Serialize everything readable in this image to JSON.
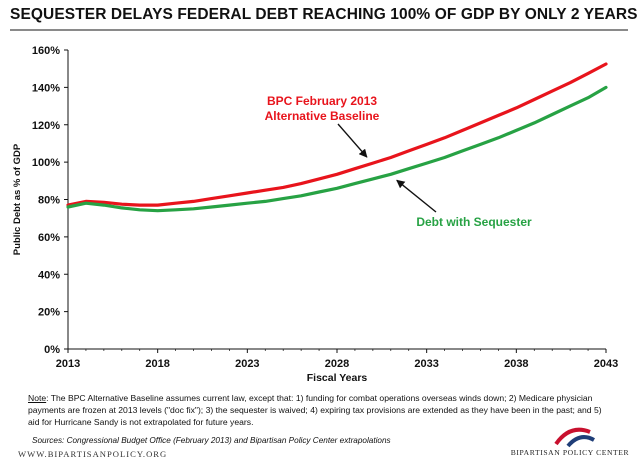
{
  "page": {
    "title": "SEQUESTER DELAYS FEDERAL DEBT REACHING 100% OF GDP BY ONLY 2 YEARS",
    "note_label": "Note",
    "note_text": ": The BPC Alternative Baseline assumes current law, except that: 1) funding for combat operations overseas winds down; 2) Medicare physician payments are frozen at 2013 levels (\"doc fix\"); 3) the sequester is waived; 4) expiring tax provisions are extended  as they have been in the past; and 5) aid for Hurricane Sandy is not extrapolated for future years.",
    "sources": "Sources: Congressional Budget Office (February 2013) and Bipartisan Policy Center extrapolations",
    "website": "WWW.BIPARTISANPOLICY.ORG",
    "logo_text": "BIPARTISAN POLICY CENTER"
  },
  "colors": {
    "red_series": "#e8141c",
    "green_series": "#27a244",
    "logo_red": "#c8102e",
    "logo_blue": "#1f3e78"
  },
  "chart_data": {
    "type": "line",
    "title": "SEQUESTER DELAYS FEDERAL DEBT REACHING 100% OF GDP BY ONLY 2 YEARS",
    "xlabel": "Fiscal Years",
    "ylabel": "Public Debt as % of GDP",
    "xlim": [
      2013,
      2043
    ],
    "ylim": [
      0,
      160
    ],
    "x_ticks": [
      "2013",
      "2018",
      "2023",
      "2028",
      "2033",
      "2038",
      "2043"
    ],
    "y_ticks": [
      "0%",
      "20%",
      "40%",
      "60%",
      "80%",
      "100%",
      "120%",
      "140%",
      "160%"
    ],
    "grid": false,
    "x": [
      2013,
      2014,
      2015,
      2016,
      2017,
      2018,
      2019,
      2020,
      2021,
      2022,
      2023,
      2024,
      2025,
      2026,
      2027,
      2028,
      2029,
      2030,
      2031,
      2032,
      2033,
      2034,
      2035,
      2036,
      2037,
      2038,
      2039,
      2040,
      2041,
      2042,
      2043
    ],
    "series": [
      {
        "name": "BPC February 2013 Alternative Baseline",
        "color": "#e8141c",
        "values": [
          77,
          79,
          78.5,
          77.5,
          77,
          77,
          78,
          79,
          80.5,
          82,
          83.5,
          85,
          86.5,
          88.5,
          91,
          93.5,
          96.5,
          99.5,
          102.5,
          106,
          109.5,
          113,
          117,
          121,
          125,
          129,
          133.5,
          138,
          142.5,
          147.5,
          152.5
        ]
      },
      {
        "name": "Debt with Sequester",
        "color": "#27a244",
        "values": [
          76,
          78,
          77,
          75.5,
          74.5,
          74,
          74.5,
          75,
          76,
          77,
          78,
          79,
          80.5,
          82,
          84,
          86,
          88.5,
          91,
          93.5,
          96.5,
          99.5,
          102.5,
          106,
          109.5,
          113,
          117,
          121,
          125.5,
          130,
          134.5,
          140
        ]
      }
    ],
    "annotations": [
      {
        "lines": [
          "BPC February 2013",
          "Alternative Baseline"
        ],
        "color": "#e8141c",
        "arrow_to_year": 2030,
        "series": 0
      },
      {
        "lines": [
          "Debt with Sequester"
        ],
        "color": "#27a244",
        "arrow_to_year": 2031,
        "series": 1
      }
    ]
  }
}
